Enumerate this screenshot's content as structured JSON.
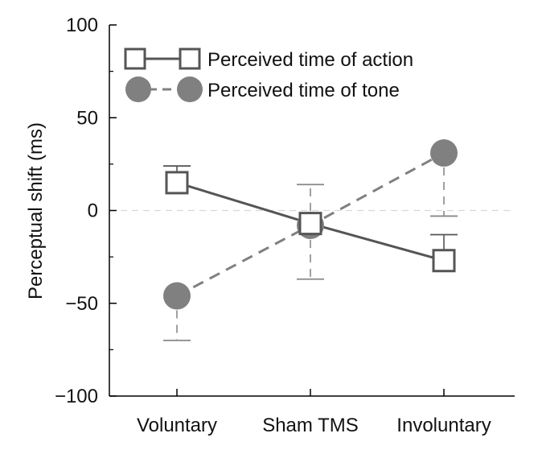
{
  "chart_data": {
    "type": "line",
    "title": "",
    "xlabel": "",
    "ylabel": "Perceptual shift (ms)",
    "categories": [
      "Voluntary",
      "Sham TMS",
      "Involuntary"
    ],
    "ylim": [
      -100,
      100
    ],
    "yticks": [
      100,
      50,
      0,
      -50,
      -100
    ],
    "ytick_labels": [
      "100",
      "50",
      "0",
      "−50",
      "−100"
    ],
    "grid": false,
    "zero_reference_line": true,
    "legend_position": "top",
    "series": [
      {
        "name": "Perceived time of action",
        "marker": "open-square",
        "line_style": "solid",
        "color": "#555555",
        "values": [
          15,
          -7,
          -27
        ],
        "error_upper": [
          24,
          null,
          -13
        ],
        "error_lower": [
          null,
          null,
          null
        ]
      },
      {
        "name": "Perceived time of tone",
        "marker": "filled-circle",
        "line_style": "dashed",
        "color": "#808080",
        "values": [
          -46,
          -8,
          31
        ],
        "error_upper": [
          null,
          14,
          null
        ],
        "error_lower": [
          -70,
          -37,
          -3
        ]
      }
    ]
  }
}
